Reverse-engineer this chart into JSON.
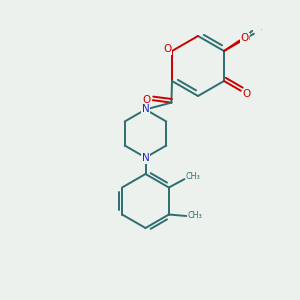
{
  "bg_color": "#edf1ed",
  "bond_color": "#2d6e6e",
  "oxygen_color": "#cc0000",
  "nitrogen_color": "#2222cc",
  "figsize": [
    3.0,
    3.0
  ],
  "dpi": 100,
  "xlim": [
    0,
    10
  ],
  "ylim": [
    0,
    10
  ]
}
